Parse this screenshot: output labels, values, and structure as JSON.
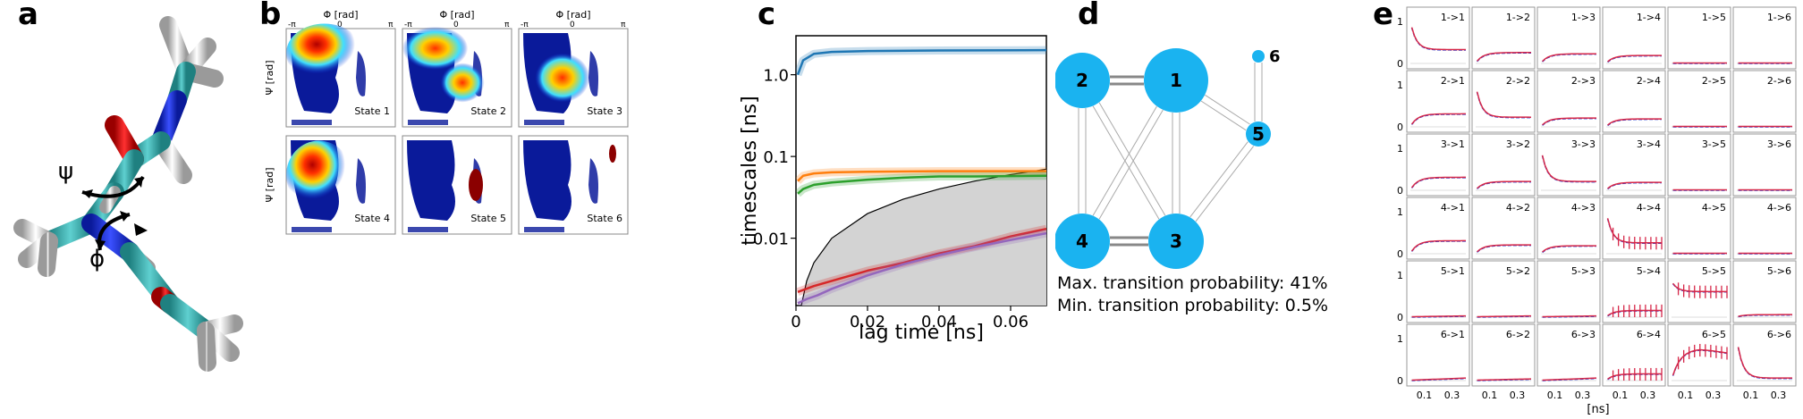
{
  "panel_labels": [
    "a",
    "b",
    "c",
    "d",
    "e"
  ],
  "panel_a": {
    "angle_labels": [
      "ψ",
      "ϕ"
    ],
    "atom_colors": {
      "carbon": "#3fb3b3",
      "oxygen": "#e01818",
      "nitrogen": "#1a2fd6",
      "hydrogen": "#e6e6e6"
    }
  },
  "panel_b": {
    "x_axis_label": "Φ [rad]",
    "y_axis_label": "Ψ [rad]",
    "tick_labels": {
      "minus_pi": "-π",
      "zero": "0",
      "pi": "π"
    },
    "states": [
      {
        "label": "State 1"
      },
      {
        "label": "State 2"
      },
      {
        "label": "State 3"
      },
      {
        "label": "State 4"
      },
      {
        "label": "State 5"
      },
      {
        "label": "State 6"
      }
    ]
  },
  "chart_data": [
    {
      "panel": "c",
      "type": "line",
      "title": "",
      "xlabel": "lag time [ns]",
      "ylabel": "timescales [ns]",
      "xlim": [
        0,
        0.07
      ],
      "ylim": [
        0.0015,
        3
      ],
      "yscale": "log",
      "xticks": [
        "0",
        "0.02",
        "0.04",
        "0.06"
      ],
      "xtick_values": [
        0,
        0.02,
        0.04,
        0.06
      ],
      "yticks": [
        "1.0",
        "0.1",
        "0.01"
      ],
      "ytick_values": [
        1.0,
        0.1,
        0.01
      ],
      "series": [
        {
          "color": "#1f77b4",
          "x": [
            0.0005,
            0.002,
            0.005,
            0.01,
            0.02,
            0.04,
            0.07
          ],
          "values": [
            1.0,
            1.5,
            1.8,
            1.9,
            1.95,
            1.98,
            2.0
          ]
        },
        {
          "color": "#ff7f0e",
          "x": [
            0.0005,
            0.002,
            0.005,
            0.01,
            0.02,
            0.04,
            0.07
          ],
          "values": [
            0.05,
            0.058,
            0.062,
            0.064,
            0.065,
            0.066,
            0.066
          ]
        },
        {
          "color": "#2ca02c",
          "x": [
            0.0005,
            0.002,
            0.005,
            0.01,
            0.02,
            0.03,
            0.04,
            0.05,
            0.07
          ],
          "values": [
            0.035,
            0.04,
            0.045,
            0.048,
            0.052,
            0.055,
            0.057,
            0.057,
            0.058
          ]
        },
        {
          "color": "#d62728",
          "x": [
            0.0005,
            0.005,
            0.01,
            0.02,
            0.03,
            0.04,
            0.05,
            0.06,
            0.07
          ],
          "values": [
            0.0022,
            0.0026,
            0.003,
            0.004,
            0.005,
            0.0065,
            0.008,
            0.0105,
            0.013
          ]
        },
        {
          "color": "#9467bd",
          "x": [
            0.0005,
            0.003,
            0.006,
            0.01,
            0.02,
            0.03,
            0.04,
            0.05,
            0.06,
            0.07
          ],
          "values": [
            0.0016,
            0.0018,
            0.002,
            0.0024,
            0.0035,
            0.0048,
            0.0062,
            0.0078,
            0.0095,
            0.0115
          ]
        }
      ],
      "shaded_region": {
        "x": [
          0.0015,
          0.003,
          0.005,
          0.01,
          0.02,
          0.03,
          0.04,
          0.05,
          0.06,
          0.07
        ],
        "values": [
          0.0015,
          0.003,
          0.005,
          0.01,
          0.02,
          0.03,
          0.04,
          0.05,
          0.06,
          0.07
        ],
        "color": "#d3d3d3"
      }
    },
    {
      "panel": "d",
      "type": "network",
      "nodes": [
        {
          "label": "1",
          "size": "large"
        },
        {
          "label": "2",
          "size": "medium"
        },
        {
          "label": "3",
          "size": "medium"
        },
        {
          "label": "4",
          "size": "medium"
        },
        {
          "label": "5",
          "size": "small"
        },
        {
          "label": "6",
          "size": "tiny"
        }
      ],
      "edges": [
        [
          "1",
          "2"
        ],
        [
          "1",
          "3"
        ],
        [
          "1",
          "4"
        ],
        [
          "1",
          "5"
        ],
        [
          "2",
          "3"
        ],
        [
          "2",
          "4"
        ],
        [
          "3",
          "4"
        ],
        [
          "3",
          "5"
        ],
        [
          "5",
          "6"
        ]
      ],
      "node_color": "#1ab3f0",
      "annotations": [
        "Max. transition probability: 41%",
        "Min. transition probability: 0.5%"
      ]
    },
    {
      "panel": "e",
      "type": "line",
      "xlabel": "[ns]",
      "xticks": [
        "0.1",
        "0.3"
      ],
      "xtick_values": [
        0.1,
        0.3
      ],
      "yticks": [
        "1",
        "0"
      ],
      "ytick_values": [
        1,
        0
      ],
      "xlim": [
        0,
        0.4
      ],
      "ylim": [
        0,
        1
      ],
      "row_labels": [
        "1",
        "2",
        "3",
        "4",
        "5",
        "6"
      ],
      "grid_titles": [
        [
          "1->1",
          "1->2",
          "1->3",
          "1->4",
          "1->5",
          "1->6"
        ],
        [
          "2->1",
          "2->2",
          "2->3",
          "2->4",
          "2->5",
          "2->6"
        ],
        [
          "3->1",
          "3->2",
          "3->3",
          "3->4",
          "3->5",
          "3->6"
        ],
        [
          "4->1",
          "4->2",
          "4->3",
          "4->4",
          "4->5",
          "4->6"
        ],
        [
          "5->1",
          "5->2",
          "5->3",
          "5->4",
          "5->5",
          "5->6"
        ],
        [
          "6->1",
          "6->2",
          "6->3",
          "6->4",
          "6->5",
          "6->6"
        ]
      ],
      "series_colors": {
        "estimate": "#1f3cd6",
        "prediction": "#d62748"
      },
      "subplots": [
        {
          "shape": "decay",
          "start": 1.0,
          "end": 0.32
        },
        {
          "shape": "rise",
          "start": 0.0,
          "end": 0.25
        },
        {
          "shape": "rise",
          "start": 0.0,
          "end": 0.22
        },
        {
          "shape": "rise",
          "start": 0.0,
          "end": 0.18
        },
        {
          "shape": "flat",
          "start": 0.0,
          "end": 0.0
        },
        {
          "shape": "flat",
          "start": 0.0,
          "end": 0.0
        },
        {
          "shape": "rise",
          "start": 0.0,
          "end": 0.3
        },
        {
          "shape": "decay",
          "start": 1.0,
          "end": 0.22
        },
        {
          "shape": "rise",
          "start": 0.0,
          "end": 0.2
        },
        {
          "shape": "rise",
          "start": 0.0,
          "end": 0.18
        },
        {
          "shape": "flat",
          "start": 0.0,
          "end": 0.0
        },
        {
          "shape": "flat",
          "start": 0.0,
          "end": 0.0
        },
        {
          "shape": "rise",
          "start": 0.0,
          "end": 0.3
        },
        {
          "shape": "rise",
          "start": 0.0,
          "end": 0.2
        },
        {
          "shape": "decay",
          "start": 1.0,
          "end": 0.2
        },
        {
          "shape": "rise",
          "start": 0.0,
          "end": 0.18
        },
        {
          "shape": "flat",
          "start": 0.0,
          "end": 0.0
        },
        {
          "shape": "flat",
          "start": 0.0,
          "end": 0.0
        },
        {
          "shape": "rise",
          "start": 0.0,
          "end": 0.3
        },
        {
          "shape": "rise",
          "start": 0.0,
          "end": 0.2
        },
        {
          "shape": "rise",
          "start": 0.0,
          "end": 0.18
        },
        {
          "shape": "decay",
          "start": 1.0,
          "end": 0.25,
          "errbar": true
        },
        {
          "shape": "flat",
          "start": 0.0,
          "end": 0.0
        },
        {
          "shape": "flat",
          "start": 0.0,
          "end": 0.0
        },
        {
          "shape": "flat",
          "start": 0.0,
          "end": 0.02
        },
        {
          "shape": "flat",
          "start": 0.0,
          "end": 0.02
        },
        {
          "shape": "flat",
          "start": 0.0,
          "end": 0.02
        },
        {
          "shape": "rise",
          "start": 0.0,
          "end": 0.15,
          "errbar": true
        },
        {
          "shape": "decay",
          "start": 0.85,
          "end": 0.6,
          "errbar": true
        },
        {
          "shape": "rise",
          "start": 0.0,
          "end": 0.05
        },
        {
          "shape": "flat",
          "start": 0.0,
          "end": 0.05
        },
        {
          "shape": "flat",
          "start": 0.0,
          "end": 0.03
        },
        {
          "shape": "flat",
          "start": 0.0,
          "end": 0.05
        },
        {
          "shape": "rise",
          "start": 0.0,
          "end": 0.15,
          "errbar": true
        },
        {
          "shape": "hump",
          "start": 0.0,
          "end": 0.75,
          "errbar": true
        },
        {
          "shape": "decay",
          "start": 1.0,
          "end": 0.05
        }
      ]
    }
  ]
}
